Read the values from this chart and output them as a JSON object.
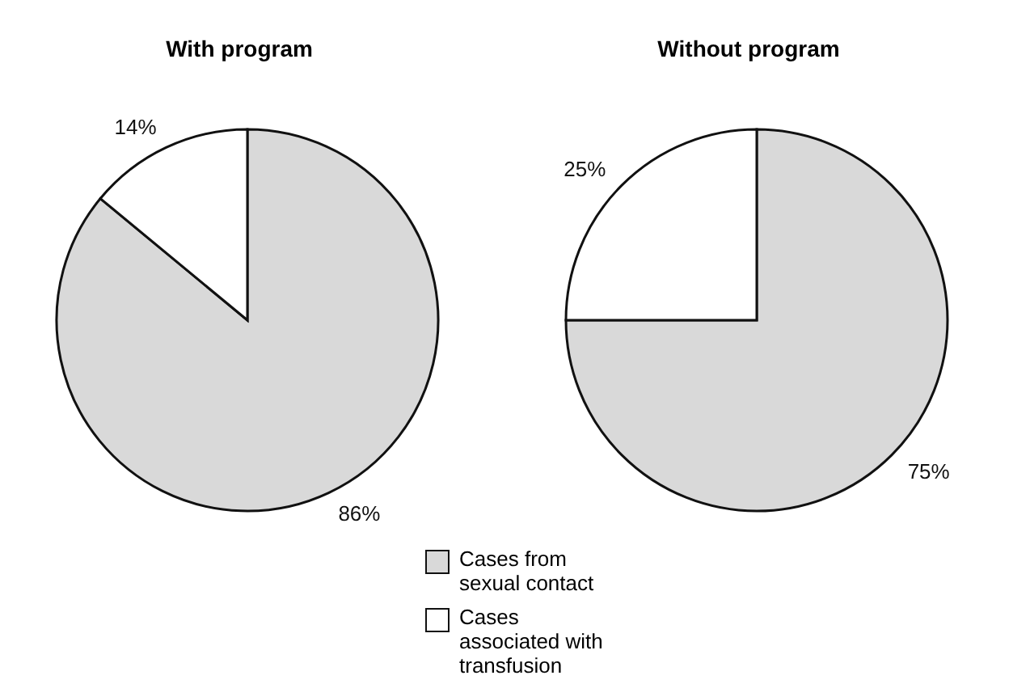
{
  "chart_data": [
    {
      "type": "pie",
      "title": "With program",
      "categories": [
        "Cases from sexual contact",
        "Cases associated with transfusion"
      ],
      "values": [
        86,
        14
      ],
      "value_labels": [
        "86%",
        "14%"
      ],
      "colors": [
        "#d9d9d9",
        "#ffffff"
      ],
      "legend": "bottom right"
    },
    {
      "type": "pie",
      "title": "Without program",
      "values": [
        75,
        25
      ],
      "value_labels": [
        "75%",
        "25%"
      ],
      "colors": [
        "#d9d9d9",
        "#ffffff"
      ]
    }
  ]
}
